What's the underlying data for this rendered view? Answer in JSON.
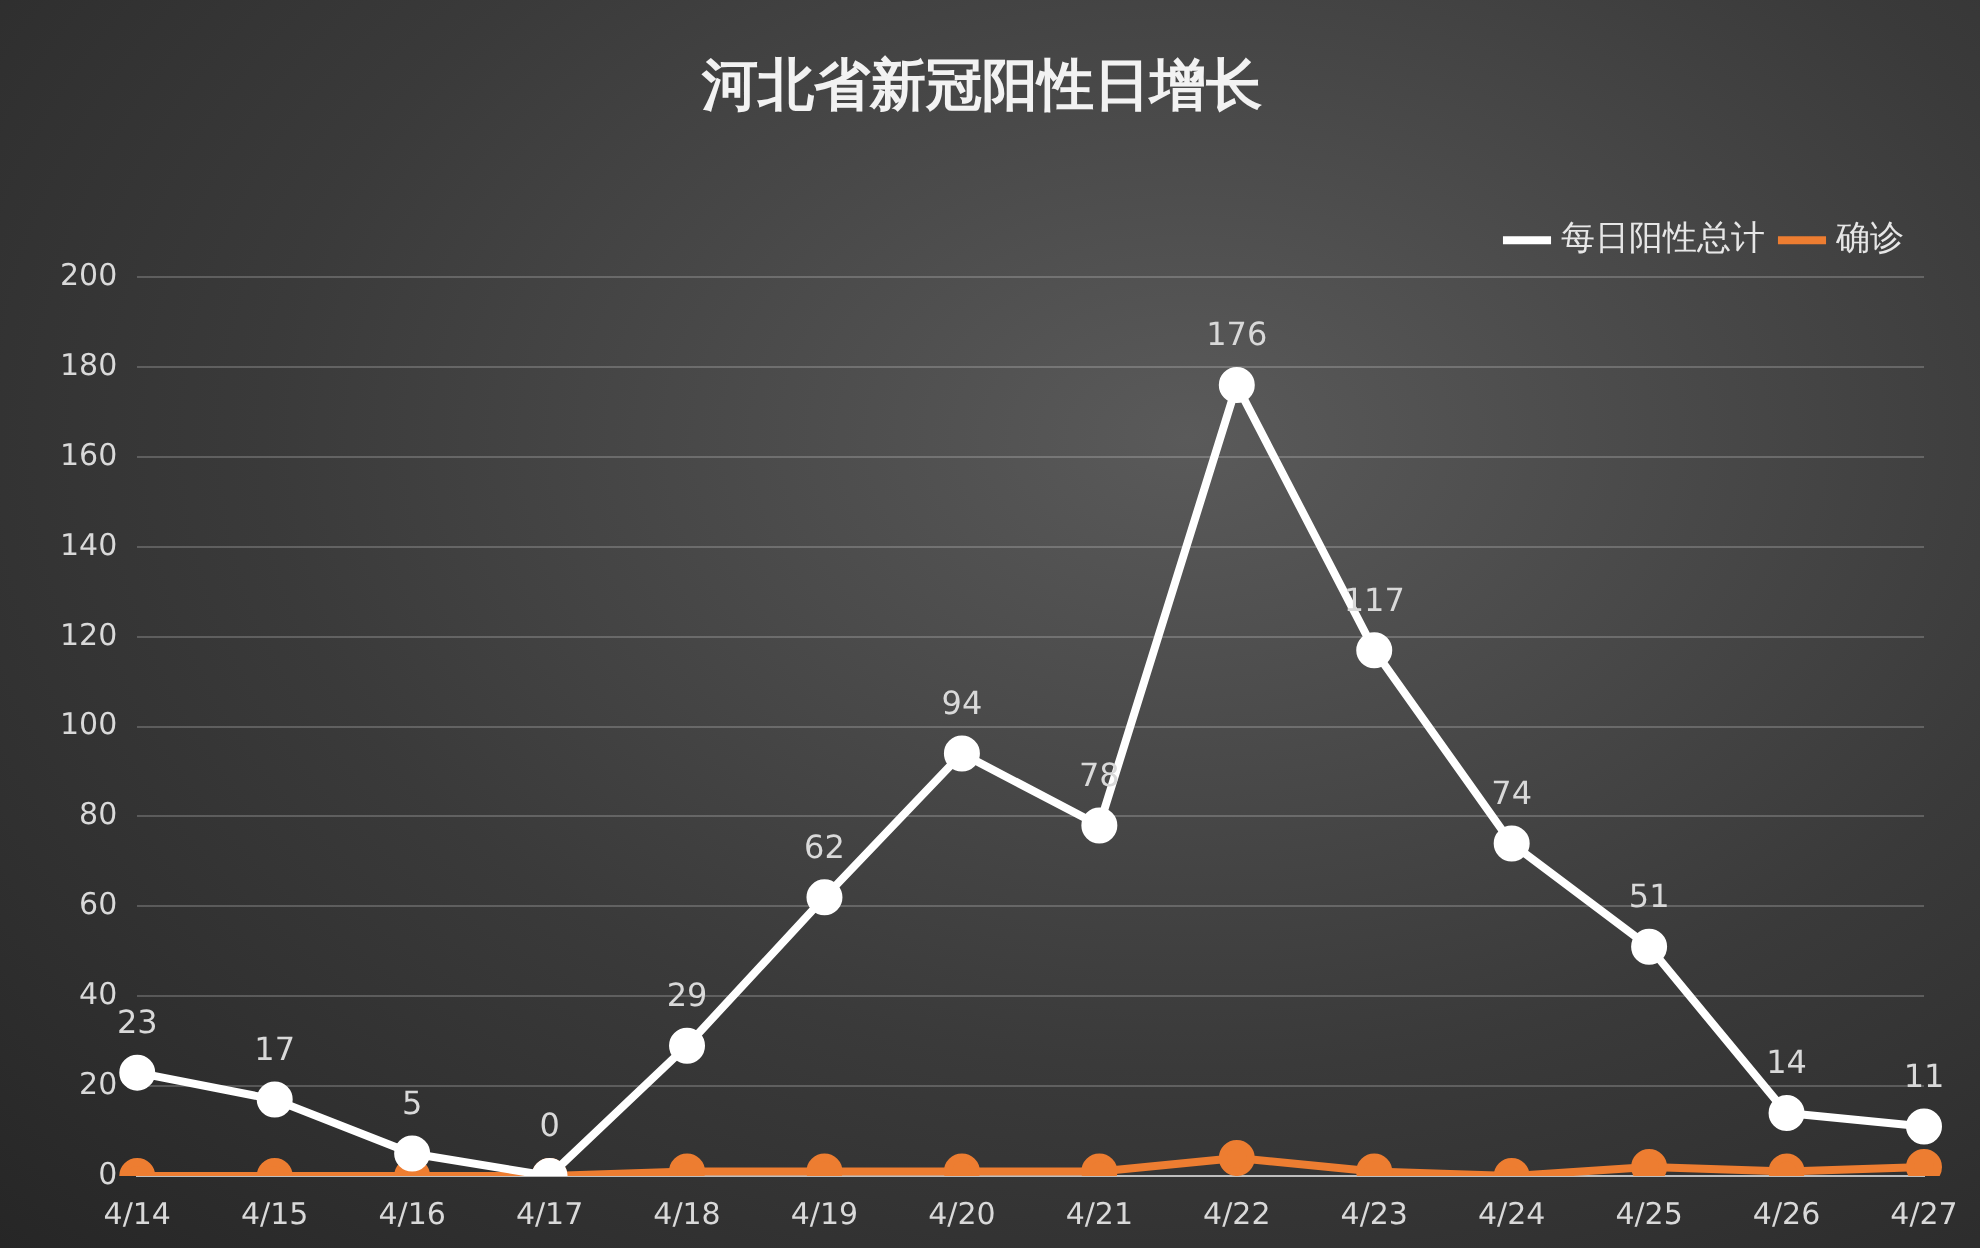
{
  "chart_data": {
    "type": "line",
    "title": "河北省新冠阳性日增长",
    "categories": [
      "4/14",
      "4/15",
      "4/16",
      "4/17",
      "4/18",
      "4/19",
      "4/20",
      "4/21",
      "4/22",
      "4/23",
      "4/24",
      "4/25",
      "4/26",
      "4/27"
    ],
    "series": [
      {
        "name": "每日阳性总计",
        "color": "#ffffff",
        "values": [
          23,
          17,
          5,
          0,
          29,
          62,
          94,
          78,
          176,
          117,
          74,
          51,
          14,
          11
        ],
        "value_labels": [
          "23",
          "17",
          "5",
          "0",
          "29",
          "62",
          "94",
          "78",
          "176",
          "117",
          "74",
          "51",
          "14",
          "11"
        ]
      },
      {
        "name": "确诊",
        "color": "#ed7d31",
        "values": [
          0,
          0,
          0,
          0,
          1,
          1,
          1,
          1,
          4,
          1,
          0,
          2,
          1,
          2
        ]
      }
    ],
    "ylim": [
      0,
      200
    ],
    "yticks": [
      0,
      20,
      40,
      60,
      80,
      100,
      120,
      140,
      160,
      180,
      200
    ],
    "grid": "y",
    "legend": "top right",
    "marker": "circle",
    "line_style": "solid"
  }
}
